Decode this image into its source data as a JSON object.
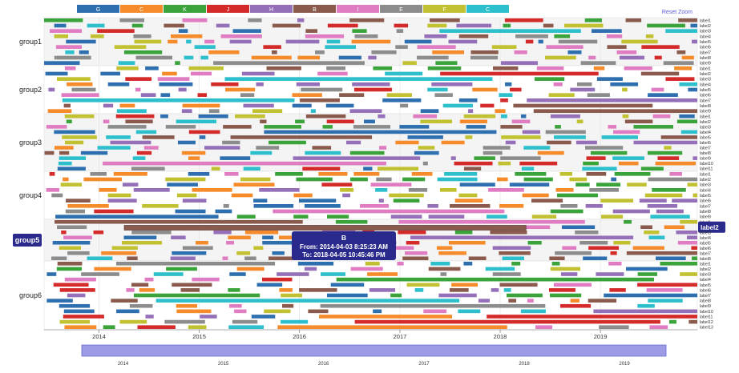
{
  "chart_data": {
    "type": "timeline",
    "legend": [
      {
        "label": "G",
        "color": "#2e6fb0"
      },
      {
        "label": "C",
        "color": "#f58b2a"
      },
      {
        "label": "K",
        "color": "#3aa33a"
      },
      {
        "label": "J",
        "color": "#d42a2a"
      },
      {
        "label": "H",
        "color": "#9570b9"
      },
      {
        "label": "B",
        "color": "#8a5a4d"
      },
      {
        "label": "I",
        "color": "#e07dc2"
      },
      {
        "label": "E",
        "color": "#8c8c8c"
      },
      {
        "label": "F",
        "color": "#c2c131"
      },
      {
        "label": "C",
        "color": "#2ebfcd"
      }
    ],
    "groups": [
      {
        "name": "group1",
        "labels": [
          "label1",
          "label2",
          "label3",
          "label4",
          "label5",
          "label6",
          "label7",
          "label8",
          "label9"
        ]
      },
      {
        "name": "group2",
        "labels": [
          "label1",
          "label2",
          "label3",
          "label4",
          "label5",
          "label6",
          "label7",
          "label8",
          "label9"
        ]
      },
      {
        "name": "group3",
        "labels": [
          "label1",
          "label2",
          "label3",
          "label4",
          "label5",
          "label6",
          "label7",
          "label8",
          "label9",
          "label10",
          "label11"
        ]
      },
      {
        "name": "group4",
        "labels": [
          "label1",
          "label2",
          "label3",
          "label4",
          "label5",
          "label6",
          "label7",
          "label8",
          "label9"
        ]
      },
      {
        "name": "group5",
        "labels": [
          "label1",
          "label2",
          "label3",
          "label4",
          "label5",
          "label6",
          "label7",
          "label8"
        ]
      },
      {
        "name": "group6",
        "labels": [
          "label1",
          "label2",
          "label3",
          "label4",
          "label5",
          "label6",
          "label7",
          "label8",
          "label9",
          "label10",
          "label11",
          "label12",
          "label13"
        ]
      }
    ],
    "x_range": [
      "2013-06-15",
      "2019-12-20"
    ],
    "x_ticks": [
      "2014",
      "2015",
      "2016",
      "2017",
      "2018",
      "2019"
    ],
    "brush_ticks": [
      "2014",
      "2015",
      "2016",
      "2017",
      "2018",
      "2019"
    ],
    "highlighted_group": "group5",
    "highlighted_label": "label2",
    "tooltip": {
      "category": "B",
      "from": "From: 2014-04-03 8:25:23 AM",
      "to": "To: 2018-04-05 10:45:46 PM"
    }
  },
  "reset_zoom": "Reset Zoom"
}
